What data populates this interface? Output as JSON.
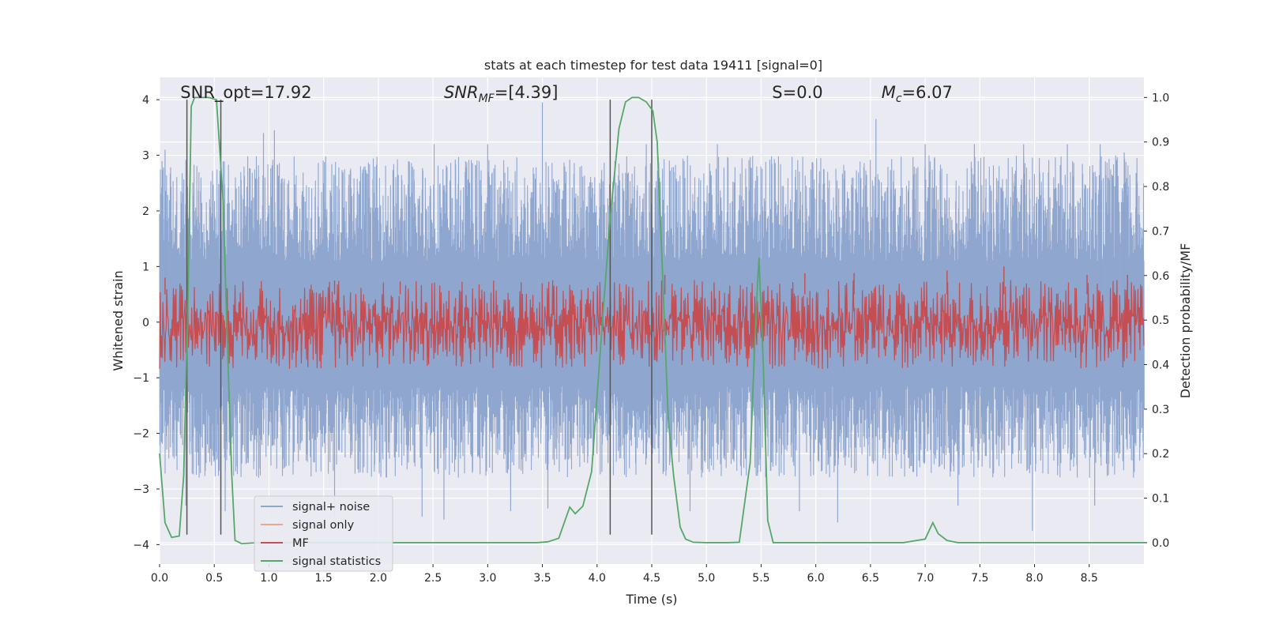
{
  "chart_data": {
    "type": "line",
    "title": "stats at each timestep for test data 19411 [signal=0]",
    "xlabel": "Time (s)",
    "ylabel": "Whitened strain",
    "ylabel_right": "Detection probability/MF",
    "xlim": [
      0.0,
      9.0
    ],
    "ylim": [
      -4.35,
      4.4
    ],
    "ylim_right": [
      -0.048,
      1.045
    ],
    "x_ticks": [
      "0.0",
      "0.5",
      "1.0",
      "1.5",
      "2.0",
      "2.5",
      "3.0",
      "3.5",
      "4.0",
      "4.5",
      "5.0",
      "5.5",
      "6.0",
      "6.5",
      "7.0",
      "7.5",
      "8.0",
      "8.5"
    ],
    "y_ticks": [
      "−4",
      "−3",
      "−2",
      "−1",
      "0",
      "1",
      "2",
      "3",
      "4"
    ],
    "y_ticks_right": [
      "0.0",
      "0.1",
      "0.2",
      "0.3",
      "0.4",
      "0.5",
      "0.6",
      "0.7",
      "0.8",
      "0.9",
      "1.0"
    ],
    "grid": true,
    "legend_position": "lower-left",
    "annotations": [
      {
        "key": "snr_opt",
        "text": "SNR_opt=17.92",
        "x": 0.19
      },
      {
        "key": "snr_mf",
        "text": "SNR_MF=[4.39]",
        "x": 2.6
      },
      {
        "key": "s",
        "text": "S=0.0",
        "x": 5.6
      },
      {
        "key": "mc",
        "text": "M_c=6.07",
        "x": 6.6
      }
    ],
    "vertical_lines": [
      0.25,
      0.56,
      4.12,
      4.5
    ],
    "noise_spikes": [
      {
        "x": 0.05,
        "y": 3.1
      },
      {
        "x": 0.24,
        "y": -3.3
      },
      {
        "x": 0.6,
        "y": -3.4
      },
      {
        "x": 0.95,
        "y": 3.4
      },
      {
        "x": 1.05,
        "y": 3.45
      },
      {
        "x": 1.6,
        "y": -3.5
      },
      {
        "x": 2.4,
        "y": -3.5
      },
      {
        "x": 2.51,
        "y": 3.2
      },
      {
        "x": 2.6,
        "y": -3.55
      },
      {
        "x": 3.0,
        "y": 3.2
      },
      {
        "x": 3.21,
        "y": -3.4
      },
      {
        "x": 3.5,
        "y": 3.95
      },
      {
        "x": 3.55,
        "y": -3.35
      },
      {
        "x": 4.45,
        "y": 3.2
      },
      {
        "x": 4.85,
        "y": -3.4
      },
      {
        "x": 5.1,
        "y": 3.2
      },
      {
        "x": 5.85,
        "y": -3.4
      },
      {
        "x": 6.2,
        "y": -3.6
      },
      {
        "x": 6.55,
        "y": 3.65
      },
      {
        "x": 7.0,
        "y": 3.2
      },
      {
        "x": 7.3,
        "y": -3.3
      },
      {
        "x": 7.45,
        "y": 3.2
      },
      {
        "x": 7.9,
        "y": 3.2
      },
      {
        "x": 7.98,
        "y": -3.75
      },
      {
        "x": 8.3,
        "y": 3.2
      },
      {
        "x": 8.55,
        "y": -3.3
      },
      {
        "x": 8.6,
        "y": 3.2
      },
      {
        "x": 8.82,
        "y": 3.05
      }
    ],
    "mf_spikes": [
      {
        "x": 0.05,
        "y": 0.8
      },
      {
        "x": 1.6,
        "y": 0.75
      },
      {
        "x": 2.2,
        "y": 0.73
      },
      {
        "x": 4.62,
        "y": 0.85
      },
      {
        "x": 5.9,
        "y": 0.88
      },
      {
        "x": 6.35,
        "y": 0.88
      },
      {
        "x": 7.2,
        "y": 0.93
      },
      {
        "x": 7.72,
        "y": 1.0
      },
      {
        "x": 8.48,
        "y": 0.85
      },
      {
        "x": 8.85,
        "y": 0.85
      }
    ],
    "series": [
      {
        "name": "signal+ noise",
        "color": "#8fa6cf",
        "style": "noise"
      },
      {
        "name": "signal only",
        "color": "#e8a98a",
        "style": "flat"
      },
      {
        "name": "MF",
        "color": "#c44e52",
        "style": "noise"
      },
      {
        "name": "signal statistics",
        "color": "#55a868",
        "axis": "right",
        "x": [
          0.0,
          0.05,
          0.11,
          0.18,
          0.22,
          0.26,
          0.29,
          0.32,
          0.38,
          0.45,
          0.52,
          0.58,
          0.62,
          0.66,
          0.69,
          0.75,
          0.9,
          1.5,
          2.5,
          3.0,
          3.45,
          3.55,
          3.65,
          3.75,
          3.8,
          3.87,
          3.95,
          4.05,
          4.12,
          4.2,
          4.26,
          4.32,
          4.38,
          4.45,
          4.51,
          4.55,
          4.6,
          4.65,
          4.7,
          4.76,
          4.81,
          4.88,
          5.0,
          5.2,
          5.3,
          5.4,
          5.45,
          5.48,
          5.52,
          5.56,
          5.61,
          5.7,
          5.9,
          6.5,
          6.8,
          7.0,
          7.07,
          7.12,
          7.2,
          7.3,
          8.0,
          9.0
        ],
        "values": [
          0.2,
          0.045,
          0.012,
          0.015,
          0.15,
          0.55,
          0.98,
          1.0,
          1.0,
          1.0,
          0.995,
          0.77,
          0.45,
          0.15,
          0.005,
          -0.002,
          0.0,
          0.0,
          0.0,
          0.0,
          0.0,
          0.002,
          0.01,
          0.08,
          0.065,
          0.082,
          0.16,
          0.5,
          0.73,
          0.93,
          0.99,
          1.0,
          1.0,
          0.99,
          0.97,
          0.9,
          0.6,
          0.28,
          0.15,
          0.035,
          0.008,
          0.001,
          0.0,
          0.0,
          0.001,
          0.18,
          0.5,
          0.64,
          0.4,
          0.05,
          0.0,
          0.0,
          0.0,
          0.0,
          0.0,
          0.008,
          0.045,
          0.02,
          0.005,
          0.0,
          0.0,
          0.0
        ]
      }
    ]
  }
}
